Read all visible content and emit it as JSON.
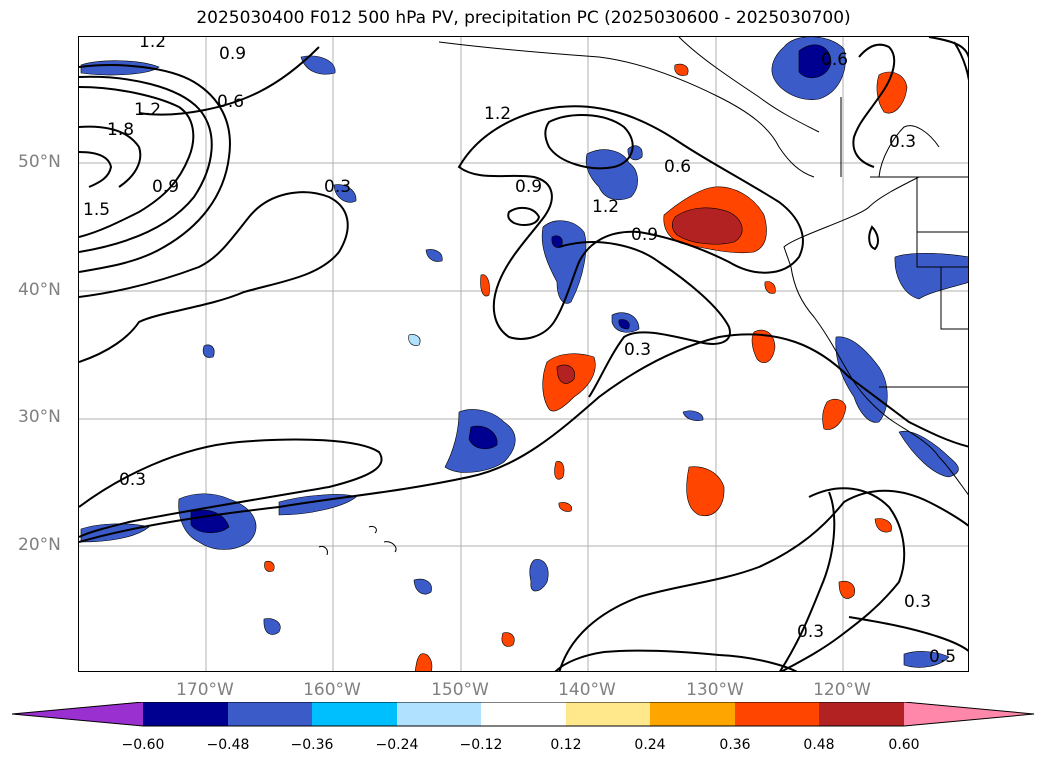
{
  "title": "2025030400 F012 500 hPa PV, precipitation PC (2025030600 - 2025030700)",
  "axes": {
    "lat_ticks": [
      "50°N",
      "40°N",
      "30°N",
      "20°N"
    ],
    "lon_ticks": [
      "170°W",
      "160°W",
      "150°W",
      "140°W",
      "130°W",
      "120°W"
    ]
  },
  "pv_contour_labels": [
    "1.2",
    "0.9",
    "1.2",
    "0.6",
    "1.8",
    "1.5",
    "0.9",
    "1.2",
    "0.9",
    "0.6",
    "1.2",
    "0.9",
    "0.3",
    "0.3",
    "0.3",
    "0.3",
    "0.3",
    "0.6",
    "0.3",
    "0.5"
  ],
  "colorbar": {
    "ticks": [
      "−0.60",
      "−0.48",
      "−0.36",
      "−0.24",
      "−0.12",
      "0.12",
      "0.24",
      "0.36",
      "0.48",
      "0.60"
    ],
    "colors": [
      "#9b30d0",
      "#000090",
      "#3a5bc8",
      "#00bfff",
      "#b0e2ff",
      "#ffffff",
      "#fee88b",
      "#ffa500",
      "#ff4500",
      "#b22222",
      "#ff88aa"
    ]
  }
}
